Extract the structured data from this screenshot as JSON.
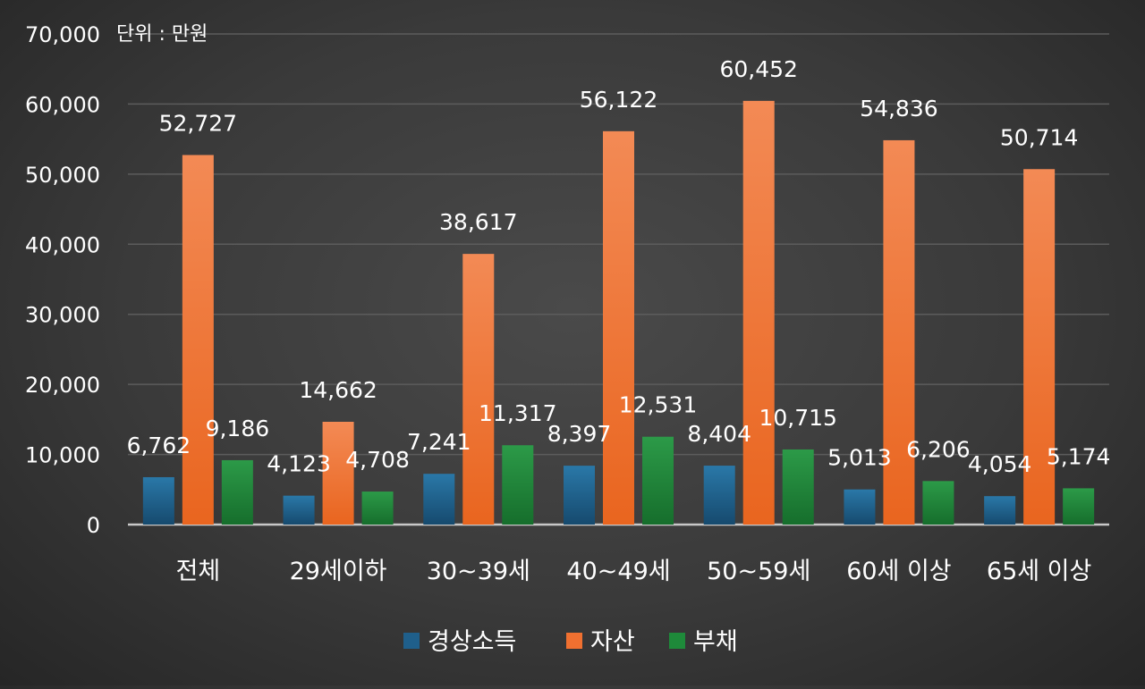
{
  "chart_data": {
    "type": "bar",
    "unit_note": "단위 : 만원",
    "categories": [
      "전체",
      "29세이하",
      "30~39세",
      "40~49세",
      "50~59세",
      "60세 이상",
      "65세 이상"
    ],
    "series": [
      {
        "name": "경상소득",
        "color": "#1f5f8b",
        "values": [
          6762,
          4123,
          7241,
          8397,
          8404,
          5013,
          4054
        ]
      },
      {
        "name": "자산",
        "color": "#f07030",
        "values": [
          52727,
          14662,
          38617,
          56122,
          60452,
          54836,
          50714
        ]
      },
      {
        "name": "부채",
        "color": "#1e8a3a",
        "values": [
          9186,
          4708,
          11317,
          12531,
          10715,
          6206,
          5174
        ]
      }
    ],
    "data_labels": [
      [
        "6,762",
        "4,123",
        "7,241",
        "8,397",
        "8,404",
        "5,013",
        "4,054"
      ],
      [
        "52,727",
        "14,662",
        "38,617",
        "56,122",
        "60,452",
        "54,836",
        "50,714"
      ],
      [
        "9,186",
        "4,708",
        "11,317",
        "12,531",
        "10,715",
        "6,206",
        "5,174"
      ]
    ],
    "yticks": [
      "0",
      "10,000",
      "20,000",
      "30,000",
      "40,000",
      "50,000",
      "60,000",
      "70,000"
    ],
    "ylim": [
      0,
      70000
    ],
    "grid": true,
    "legend_position": "bottom"
  }
}
